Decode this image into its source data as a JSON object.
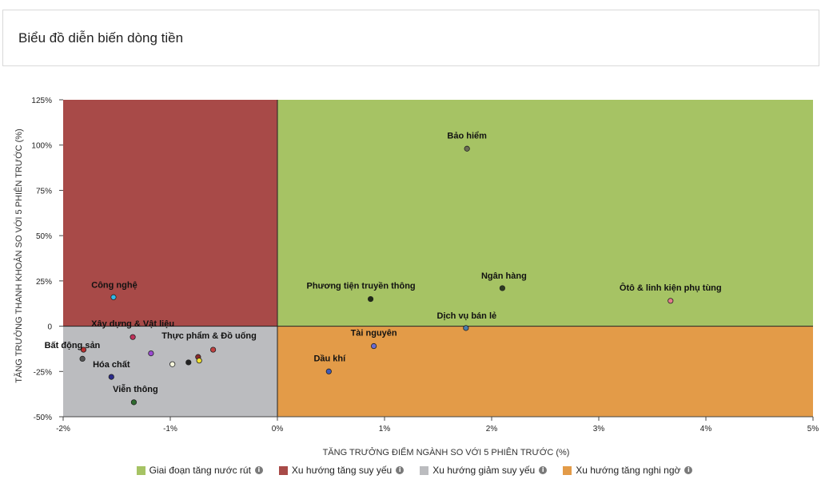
{
  "header": {
    "title": "Biểu đồ diễn biến dòng tiền"
  },
  "chart_data": {
    "type": "scatter",
    "xlabel": "TĂNG TRƯỞNG ĐIỂM NGÀNH SO VỚI 5 PHIÊN TRƯỚC (%)",
    "ylabel": "TĂNG TRƯỞNG THANH KHOẢN SO VỚI 5 PHIÊN TRƯỚC (%)",
    "xlim": [
      -2,
      5
    ],
    "ylim": [
      -50,
      125
    ],
    "xticks": [
      -2,
      -1,
      0,
      1,
      2,
      3,
      4,
      5
    ],
    "xtick_labels": [
      "-2%",
      "-1%",
      "0%",
      "1%",
      "2%",
      "3%",
      "4%",
      "5%"
    ],
    "yticks": [
      -50,
      -25,
      0,
      25,
      50,
      75,
      100,
      125
    ],
    "ytick_labels": [
      "-50%",
      "-25%",
      "0",
      "25%",
      "50%",
      "75%",
      "100%",
      "125%"
    ],
    "quadrants": [
      {
        "name": "Giai đoạn tăng nước rút",
        "color": "#a6c364",
        "x": [
          0,
          5
        ],
        "y": [
          0,
          125
        ]
      },
      {
        "name": "Xu hướng tăng suy yếu",
        "color": "#a84a48",
        "x": [
          -2,
          0
        ],
        "y": [
          0,
          125
        ]
      },
      {
        "name": "Xu hướng giảm suy yếu",
        "color": "#bbbcbf",
        "x": [
          -2,
          0
        ],
        "y": [
          -50,
          0
        ]
      },
      {
        "name": "Xu hướng tăng nghi ngờ",
        "color": "#e39b48",
        "x": [
          0,
          5
        ],
        "y": [
          -50,
          0
        ]
      }
    ],
    "points": [
      {
        "label": "Bảo hiểm",
        "x": 1.77,
        "y": 98,
        "color": "#6b6b55"
      },
      {
        "label": "Ngân hàng",
        "x": 2.1,
        "y": 21,
        "color": "#2e3b22"
      },
      {
        "label": "Phương tiện truyền thông",
        "x": 0.87,
        "y": 15,
        "color": "#1f2a15"
      },
      {
        "label": "Ôtô & linh kiện phụ tùng",
        "x": 3.67,
        "y": 14,
        "color": "#e07b8a"
      },
      {
        "label": "Dịch vụ bán lẻ",
        "x": 1.76,
        "y": -1,
        "color": "#4a7aa8"
      },
      {
        "label": "Tài nguyên",
        "x": 0.9,
        "y": -11,
        "color": "#6a6ad0"
      },
      {
        "label": "Dầu khí",
        "x": 0.48,
        "y": -25,
        "color": "#3e5ab8"
      },
      {
        "label": "Công nghệ",
        "x": -1.53,
        "y": 16,
        "color": "#2fb8e8"
      },
      {
        "label": "Xây dựng & Vật liệu",
        "x": -1.35,
        "y": -6,
        "color": "#c0305a"
      },
      {
        "label": "Bất động sản",
        "x": -1.81,
        "y": -13,
        "color": "#b83030"
      },
      {
        "label": "",
        "x": -1.82,
        "y": -18,
        "color": "#555555"
      },
      {
        "label": "Thực phẩm & Đồ uống",
        "x": -0.6,
        "y": -13,
        "color": "#c04040"
      },
      {
        "label": "",
        "x": -1.18,
        "y": -15,
        "color": "#9a4ad0"
      },
      {
        "label": "",
        "x": -0.98,
        "y": -21,
        "color": "#f5f5dc"
      },
      {
        "label": "",
        "x": -0.83,
        "y": -20,
        "color": "#222222"
      },
      {
        "label": "",
        "x": -0.74,
        "y": -17,
        "color": "#8a2a2a"
      },
      {
        "label": "",
        "x": -0.73,
        "y": -19,
        "color": "#f0e030"
      },
      {
        "label": "Hóa chất",
        "x": -1.55,
        "y": -28,
        "color": "#2a2a8a"
      },
      {
        "label": "Viễn thông",
        "x": -1.34,
        "y": -42,
        "color": "#2e6a2e"
      }
    ]
  },
  "legend": [
    {
      "label": "Giai đoạn tăng nước rút",
      "color": "#a6c364"
    },
    {
      "label": "Xu hướng tăng suy yếu",
      "color": "#a84a48"
    },
    {
      "label": "Xu hướng giảm suy yếu",
      "color": "#bbbcbf"
    },
    {
      "label": "Xu hướng tăng nghi ngờ",
      "color": "#e39b48"
    }
  ]
}
